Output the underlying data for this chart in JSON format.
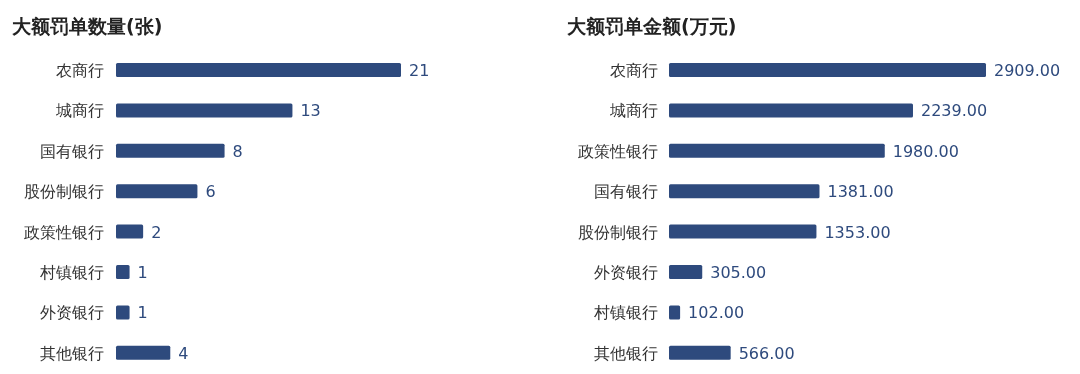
{
  "chart_data": [
    {
      "type": "bar",
      "orientation": "horizontal",
      "title": "大额罚单数量(张)",
      "categories": [
        "农商行",
        "城商行",
        "国有银行",
        "股份制银行",
        "政策性银行",
        "村镇银行",
        "外资银行",
        "其他银行"
      ],
      "values": [
        21,
        13,
        8,
        6,
        2,
        1,
        1,
        4
      ],
      "color": "#2e4a7d",
      "data_labels": true
    },
    {
      "type": "bar",
      "orientation": "horizontal",
      "title": "大额罚单金额(万元)",
      "categories": [
        "农商行",
        "城商行",
        "政策性银行",
        "国有银行",
        "股份制银行",
        "外资银行",
        "村镇银行",
        "其他银行"
      ],
      "values": [
        2909.0,
        2239.0,
        1980.0,
        1381.0,
        1353.0,
        305.0,
        102.0,
        566.0
      ],
      "value_labels": [
        "2909.00",
        "2239.00",
        "1980.00",
        "1381.00",
        "1353.00",
        "305.00",
        "102.00",
        "566.00"
      ],
      "color": "#2e4a7d"
    }
  ]
}
